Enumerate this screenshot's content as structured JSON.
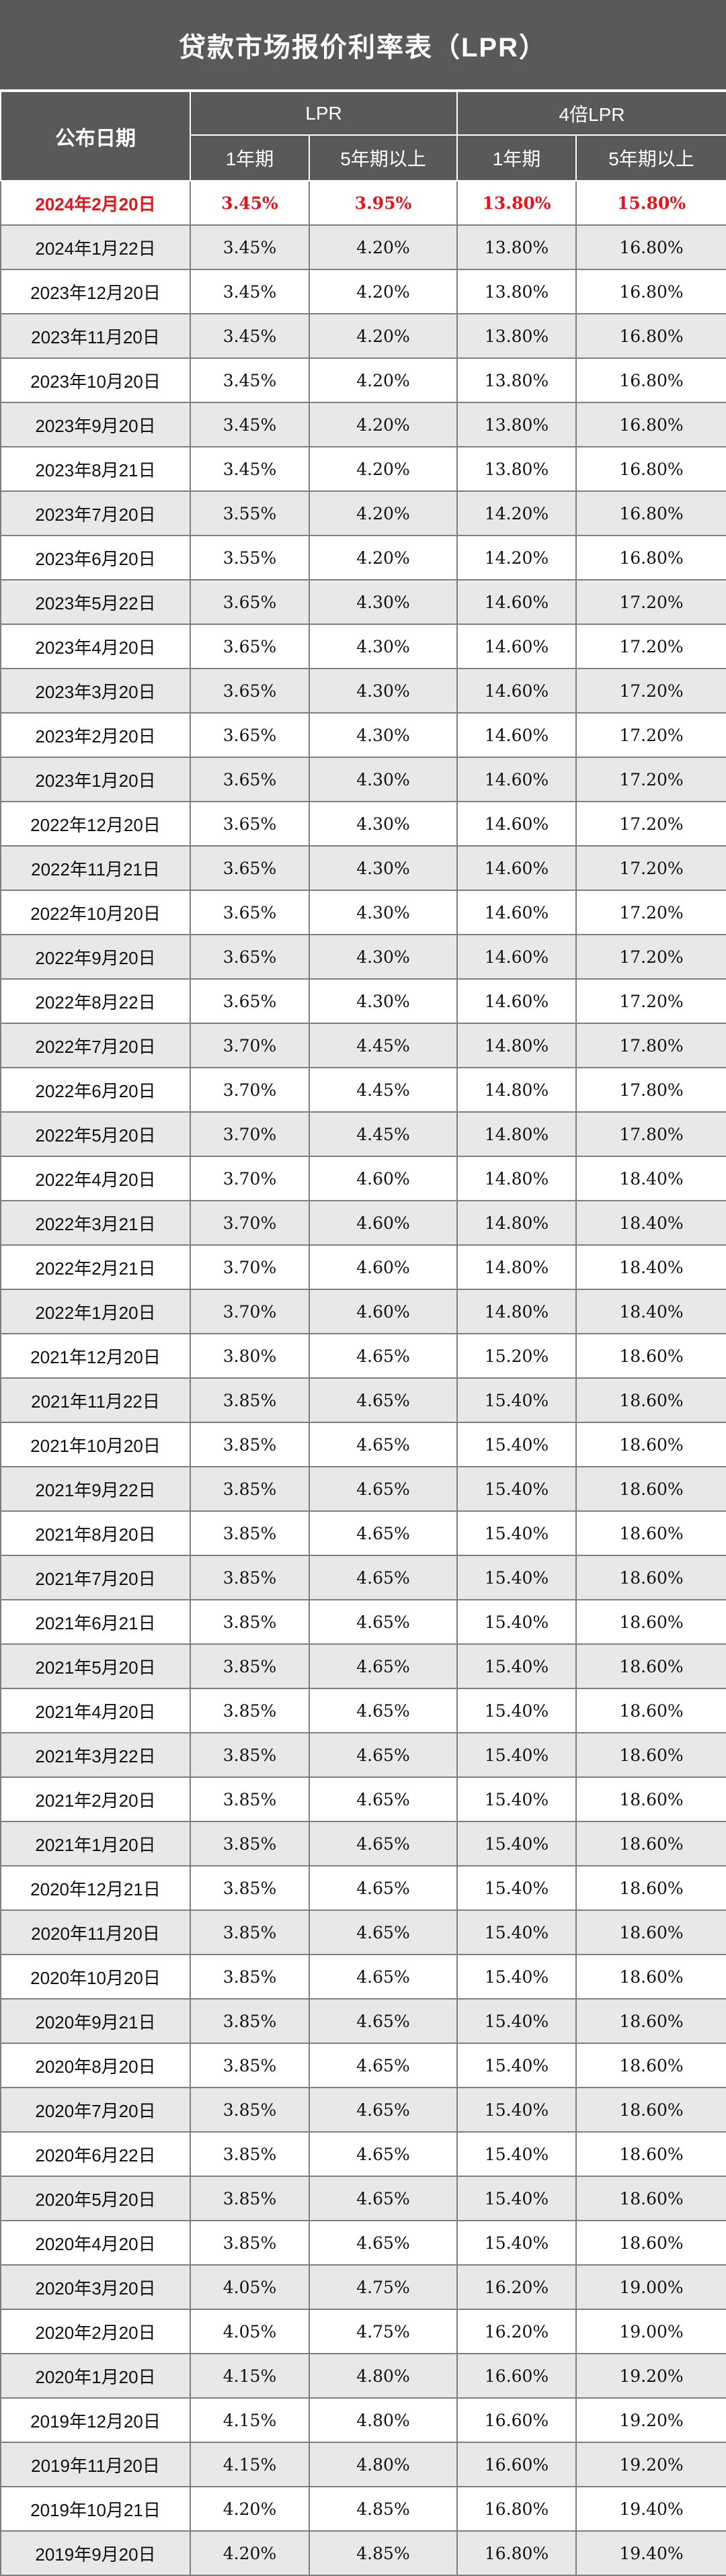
{
  "title": "贷款市场报价利率表（LPR）",
  "header": {
    "date": "公布日期",
    "lpr": "LPR",
    "lpr4": "4倍LPR",
    "term1": "1年期",
    "term5": "5年期以上"
  },
  "rows": [
    [
      "2024年2月20日",
      "3.45%",
      "3.95%",
      "13.80%",
      "15.80%"
    ],
    [
      "2024年1月22日",
      "3.45%",
      "4.20%",
      "13.80%",
      "16.80%"
    ],
    [
      "2023年12月20日",
      "3.45%",
      "4.20%",
      "13.80%",
      "16.80%"
    ],
    [
      "2023年11月20日",
      "3.45%",
      "4.20%",
      "13.80%",
      "16.80%"
    ],
    [
      "2023年10月20日",
      "3.45%",
      "4.20%",
      "13.80%",
      "16.80%"
    ],
    [
      "2023年9月20日",
      "3.45%",
      "4.20%",
      "13.80%",
      "16.80%"
    ],
    [
      "2023年8月21日",
      "3.45%",
      "4.20%",
      "13.80%",
      "16.80%"
    ],
    [
      "2023年7月20日",
      "3.55%",
      "4.20%",
      "14.20%",
      "16.80%"
    ],
    [
      "2023年6月20日",
      "3.55%",
      "4.20%",
      "14.20%",
      "16.80%"
    ],
    [
      "2023年5月22日",
      "3.65%",
      "4.30%",
      "14.60%",
      "17.20%"
    ],
    [
      "2023年4月20日",
      "3.65%",
      "4.30%",
      "14.60%",
      "17.20%"
    ],
    [
      "2023年3月20日",
      "3.65%",
      "4.30%",
      "14.60%",
      "17.20%"
    ],
    [
      "2023年2月20日",
      "3.65%",
      "4.30%",
      "14.60%",
      "17.20%"
    ],
    [
      "2023年1月20日",
      "3.65%",
      "4.30%",
      "14.60%",
      "17.20%"
    ],
    [
      "2022年12月20日",
      "3.65%",
      "4.30%",
      "14.60%",
      "17.20%"
    ],
    [
      "2022年11月21日",
      "3.65%",
      "4.30%",
      "14.60%",
      "17.20%"
    ],
    [
      "2022年10月20日",
      "3.65%",
      "4.30%",
      "14.60%",
      "17.20%"
    ],
    [
      "2022年9月20日",
      "3.65%",
      "4.30%",
      "14.60%",
      "17.20%"
    ],
    [
      "2022年8月22日",
      "3.65%",
      "4.30%",
      "14.60%",
      "17.20%"
    ],
    [
      "2022年7月20日",
      "3.70%",
      "4.45%",
      "14.80%",
      "17.80%"
    ],
    [
      "2022年6月20日",
      "3.70%",
      "4.45%",
      "14.80%",
      "17.80%"
    ],
    [
      "2022年5月20日",
      "3.70%",
      "4.45%",
      "14.80%",
      "17.80%"
    ],
    [
      "2022年4月20日",
      "3.70%",
      "4.60%",
      "14.80%",
      "18.40%"
    ],
    [
      "2022年3月21日",
      "3.70%",
      "4.60%",
      "14.80%",
      "18.40%"
    ],
    [
      "2022年2月21日",
      "3.70%",
      "4.60%",
      "14.80%",
      "18.40%"
    ],
    [
      "2022年1月20日",
      "3.70%",
      "4.60%",
      "14.80%",
      "18.40%"
    ],
    [
      "2021年12月20日",
      "3.80%",
      "4.65%",
      "15.20%",
      "18.60%"
    ],
    [
      "2021年11月22日",
      "3.85%",
      "4.65%",
      "15.40%",
      "18.60%"
    ],
    [
      "2021年10月20日",
      "3.85%",
      "4.65%",
      "15.40%",
      "18.60%"
    ],
    [
      "2021年9月22日",
      "3.85%",
      "4.65%",
      "15.40%",
      "18.60%"
    ],
    [
      "2021年8月20日",
      "3.85%",
      "4.65%",
      "15.40%",
      "18.60%"
    ],
    [
      "2021年7月20日",
      "3.85%",
      "4.65%",
      "15.40%",
      "18.60%"
    ],
    [
      "2021年6月21日",
      "3.85%",
      "4.65%",
      "15.40%",
      "18.60%"
    ],
    [
      "2021年5月20日",
      "3.85%",
      "4.65%",
      "15.40%",
      "18.60%"
    ],
    [
      "2021年4月20日",
      "3.85%",
      "4.65%",
      "15.40%",
      "18.60%"
    ],
    [
      "2021年3月22日",
      "3.85%",
      "4.65%",
      "15.40%",
      "18.60%"
    ],
    [
      "2021年2月20日",
      "3.85%",
      "4.65%",
      "15.40%",
      "18.60%"
    ],
    [
      "2021年1月20日",
      "3.85%",
      "4.65%",
      "15.40%",
      "18.60%"
    ],
    [
      "2020年12月21日",
      "3.85%",
      "4.65%",
      "15.40%",
      "18.60%"
    ],
    [
      "2020年11月20日",
      "3.85%",
      "4.65%",
      "15.40%",
      "18.60%"
    ],
    [
      "2020年10月20日",
      "3.85%",
      "4.65%",
      "15.40%",
      "18.60%"
    ],
    [
      "2020年9月21日",
      "3.85%",
      "4.65%",
      "15.40%",
      "18.60%"
    ],
    [
      "2020年8月20日",
      "3.85%",
      "4.65%",
      "15.40%",
      "18.60%"
    ],
    [
      "2020年7月20日",
      "3.85%",
      "4.65%",
      "15.40%",
      "18.60%"
    ],
    [
      "2020年6月22日",
      "3.85%",
      "4.65%",
      "15.40%",
      "18.60%"
    ],
    [
      "2020年5月20日",
      "3.85%",
      "4.65%",
      "15.40%",
      "18.60%"
    ],
    [
      "2020年4月20日",
      "3.85%",
      "4.65%",
      "15.40%",
      "18.60%"
    ],
    [
      "2020年3月20日",
      "4.05%",
      "4.75%",
      "16.20%",
      "19.00%"
    ],
    [
      "2020年2月20日",
      "4.05%",
      "4.75%",
      "16.20%",
      "19.00%"
    ],
    [
      "2020年1月20日",
      "4.15%",
      "4.80%",
      "16.60%",
      "19.20%"
    ],
    [
      "2019年12月20日",
      "4.15%",
      "4.80%",
      "16.60%",
      "19.20%"
    ],
    [
      "2019年11月20日",
      "4.15%",
      "4.80%",
      "16.60%",
      "19.20%"
    ],
    [
      "2019年10月21日",
      "4.20%",
      "4.85%",
      "16.80%",
      "19.40%"
    ],
    [
      "2019年9月20日",
      "4.20%",
      "4.85%",
      "16.80%",
      "19.40%"
    ]
  ],
  "colors": {
    "header_bg": "#595959",
    "highlight": "#e8141c",
    "stripe": "#e8e8e8"
  }
}
